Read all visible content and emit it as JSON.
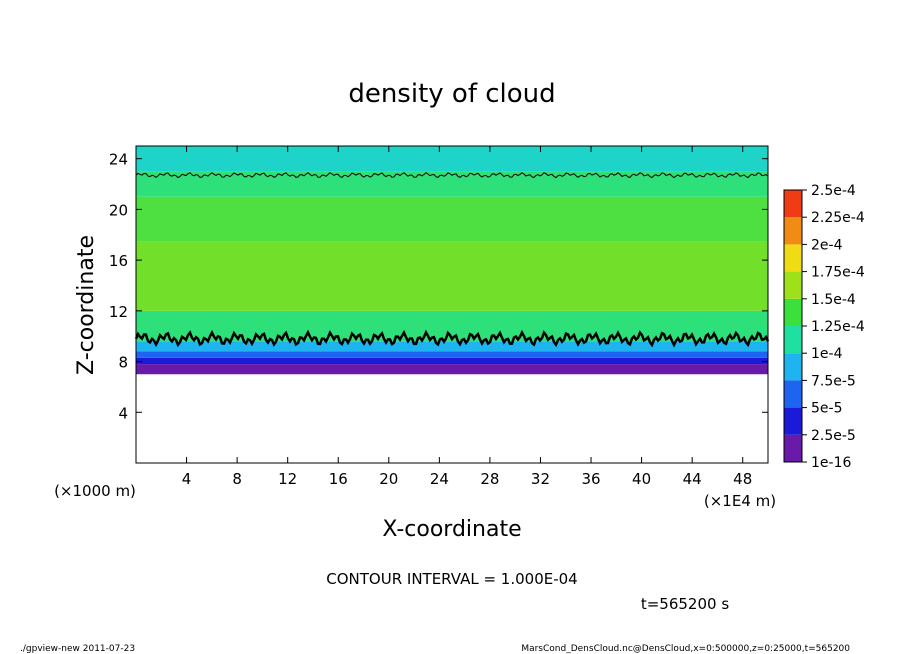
{
  "chart_data": {
    "type": "heatmap",
    "title": "density of cloud",
    "xlabel": "X-coordinate",
    "ylabel": "Z-coordinate",
    "x_unit": "(×1E4 m)",
    "y_unit": "(×1000 m)",
    "xlim": [
      0,
      50
    ],
    "ylim": [
      0,
      25
    ],
    "xticks": [
      "4",
      "8",
      "12",
      "16",
      "20",
      "24",
      "28",
      "32",
      "36",
      "40",
      "44",
      "48"
    ],
    "yticks": [
      "4",
      "8",
      "12",
      "16",
      "20",
      "24"
    ],
    "colorbar": {
      "labels": [
        "1e-16",
        "2.5e-5",
        "5e-5",
        "7.5e-5",
        "1e-4",
        "1.25e-4",
        "1.5e-4",
        "1.75e-4",
        "2e-4",
        "2.25e-4",
        "2.5e-4"
      ],
      "colors": [
        "#6a1aa8",
        "#1a1ad8",
        "#1e64f0",
        "#1eb4f0",
        "#1ee0a0",
        "#3ce03c",
        "#9ee01a",
        "#f0dc14",
        "#f08c14",
        "#f03c14",
        "#f4a0a8"
      ]
    },
    "bands": [
      {
        "z_from": 7.0,
        "z_to": 7.8,
        "value": "1e-16",
        "color": "#6a1aa8"
      },
      {
        "z_from": 7.8,
        "z_to": 8.3,
        "value": "2.5e-5",
        "color": "#1a1ad8"
      },
      {
        "z_from": 8.3,
        "z_to": 8.8,
        "value": "5e-5",
        "color": "#1e64f0"
      },
      {
        "z_from": 8.8,
        "z_to": 9.6,
        "value": "7.5e-5",
        "color": "#1eb4f0"
      },
      {
        "z_from": 9.6,
        "z_to": 12.0,
        "value": "1e-4",
        "color": "#2ee07a"
      },
      {
        "z_from": 12.0,
        "z_to": 17.5,
        "value": "1.25e-4",
        "color": "#72e02a"
      },
      {
        "z_from": 17.5,
        "z_to": 21.0,
        "value": "1.25e-4",
        "color": "#4ee040"
      },
      {
        "z_from": 21.0,
        "z_to": 23.0,
        "value": "1e-4",
        "color": "#2ee07a"
      },
      {
        "z_from": 23.0,
        "z_to": 25.0,
        "value": "7.5e-5",
        "color": "#1ed4c8"
      }
    ],
    "contour_levels_z": [
      9.8,
      22.7
    ]
  },
  "contour_interval_text": "CONTOUR INTERVAL = 1.000E-04",
  "time_text": "t=565200 s",
  "footer_left": "./gpview-new  2011-07-23",
  "footer_right": "MarsCond_DensCloud.nc@DensCloud,x=0:500000,z=0:25000,t=565200"
}
